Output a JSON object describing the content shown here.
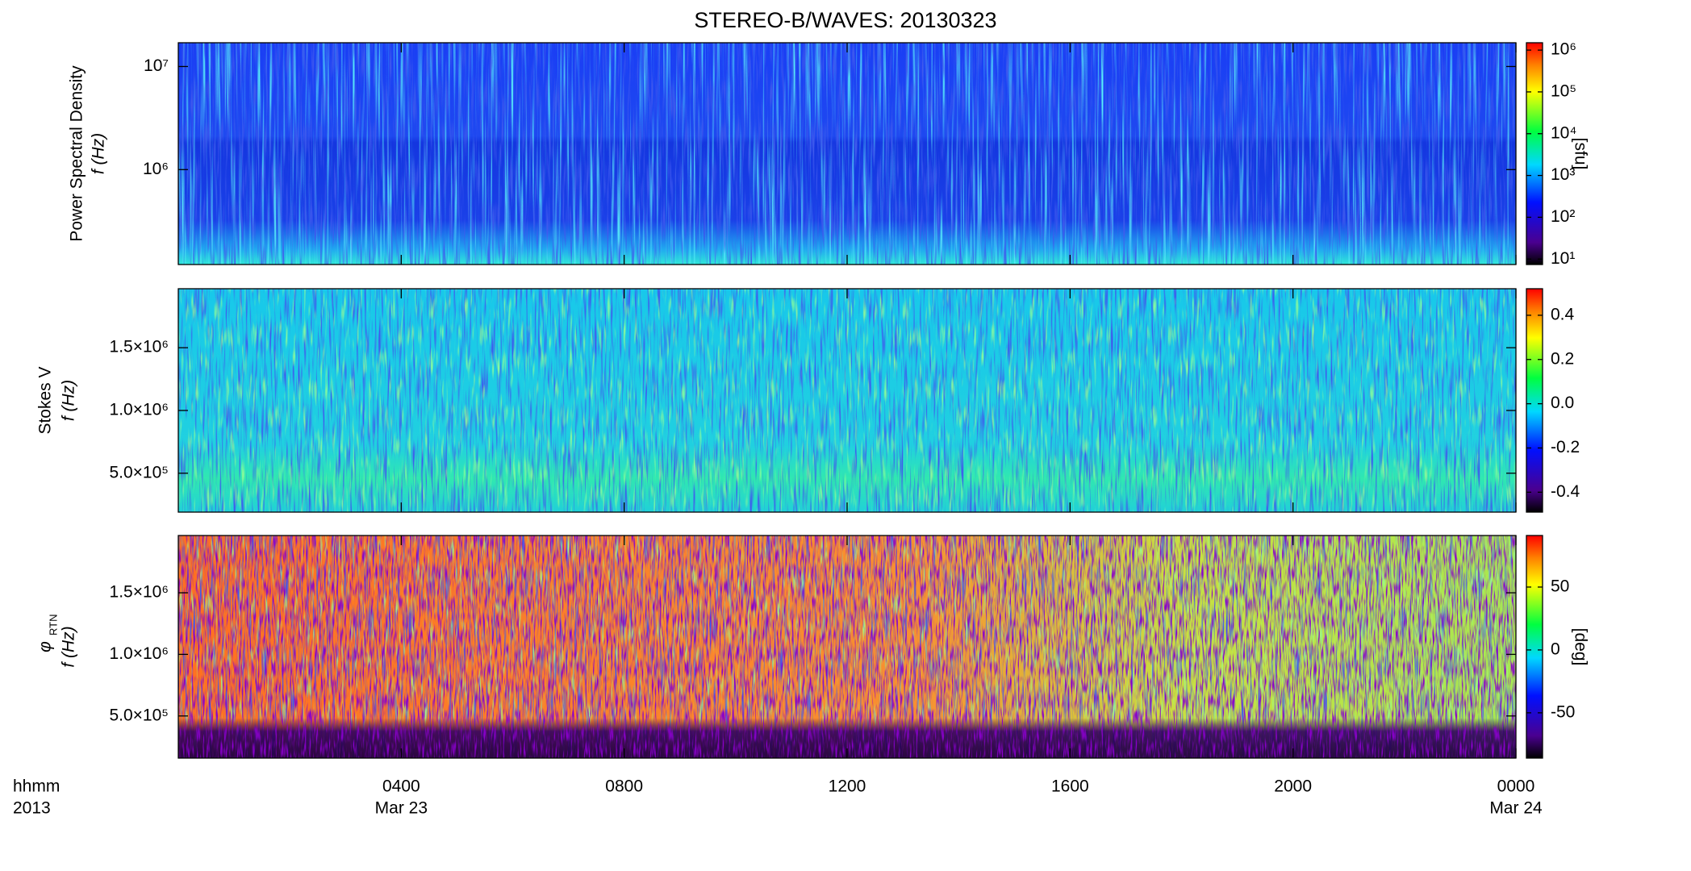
{
  "figure": {
    "title": "STEREO-B/WAVES: 20130323",
    "xlim": [
      0,
      24
    ],
    "xticks": [
      {
        "value": 4,
        "label": "0400"
      },
      {
        "value": 8,
        "label": "0800"
      },
      {
        "value": 12,
        "label": "1200"
      },
      {
        "value": 16,
        "label": "1600"
      },
      {
        "value": 20,
        "label": "2000"
      },
      {
        "value": 24,
        "label": "0000"
      }
    ],
    "x_date_labels": [
      {
        "value": 4,
        "label": "Mar 23"
      },
      {
        "value": 24,
        "label": "Mar 24"
      }
    ],
    "xaxis_label": [
      "hhmm",
      "2013"
    ]
  },
  "chart_data": [
    {
      "type": "heatmap",
      "ylabel": [
        "Power Spectral Density",
        "f (Hz)"
      ],
      "ylog": true,
      "ylim": [
        120000,
        17000000
      ],
      "yticks": [
        {
          "value": 1000000,
          "label": "10⁶"
        },
        {
          "value": 10000000,
          "label": "10⁷"
        }
      ],
      "colorbar": {
        "log": true,
        "clim": [
          7.4,
          1500000
        ],
        "label": "[sfu]",
        "ticks": [
          {
            "value": 10,
            "label": "10¹"
          },
          {
            "value": 100,
            "label": "10²"
          },
          {
            "value": 1000,
            "label": "10³"
          },
          {
            "value": 10000,
            "label": "10⁴"
          },
          {
            "value": 100000,
            "label": "10⁵"
          },
          {
            "value": 1000000,
            "label": "10⁶"
          }
        ]
      }
    },
    {
      "type": "heatmap",
      "ylabel": [
        "Stokes V",
        "f (Hz)"
      ],
      "ylog": false,
      "ylim": [
        190000,
        1970000
      ],
      "yticks": [
        {
          "value": 500000,
          "label": "5.0×10⁵"
        },
        {
          "value": 1000000,
          "label": "1.0×10⁶"
        },
        {
          "value": 1500000,
          "label": "1.5×10⁶"
        }
      ],
      "colorbar": {
        "log": false,
        "clim": [
          -0.49,
          0.52
        ],
        "ticks": [
          -0.4,
          -0.2,
          {
            "value": 0,
            "label": "0.0"
          },
          0.2,
          0.4
        ]
      }
    },
    {
      "type": "heatmap",
      "ylabel": [
        "φ",
        "f (Hz)"
      ],
      "ylabel_subscript": "RTN",
      "ylog": false,
      "ylim": [
        158000,
        1965000
      ],
      "yticks": [
        {
          "value": 500000,
          "label": "5.0×10⁵"
        },
        {
          "value": 1000000,
          "label": "1.0×10⁶"
        },
        {
          "value": 1500000,
          "label": "1.5×10⁶"
        }
      ],
      "colorbar": {
        "log": false,
        "clim": [
          -86,
          91
        ],
        "label": "[deg]",
        "ticks": [
          -50,
          0,
          50
        ]
      }
    }
  ]
}
